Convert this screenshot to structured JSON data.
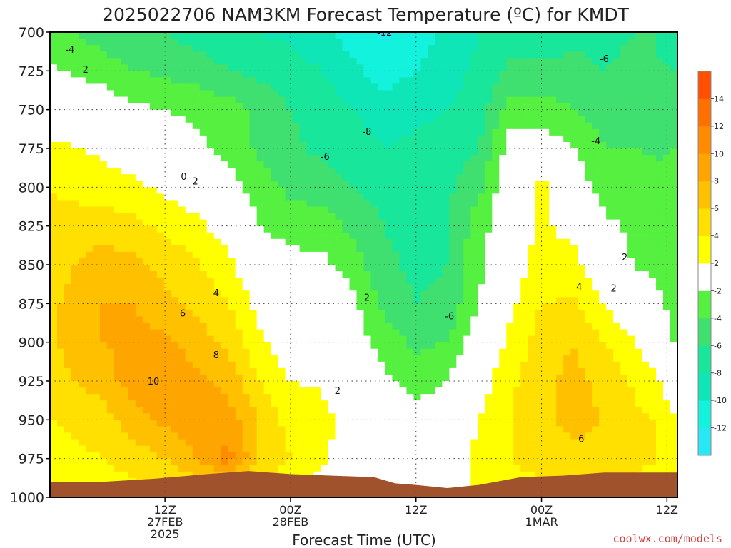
{
  "chart_data": {
    "type": "heatmap",
    "title": "2025022706 NAM3KM Forecast Temperature (ºC) for KMDT",
    "xlabel": "Forecast Time (UTC)",
    "ylabel": "",
    "y_axis": {
      "reversed": true,
      "ticks": [
        "700",
        "725",
        "750",
        "775",
        "800",
        "825",
        "850",
        "875",
        "900",
        "925",
        "950",
        "975",
        "1000"
      ],
      "range": [
        700,
        1000
      ]
    },
    "x_axis": {
      "range_hours": [
        -5,
        55
      ],
      "ticks": [
        {
          "hour": 6,
          "lines": [
            "12Z",
            "27FEB",
            "2025"
          ]
        },
        {
          "hour": 18,
          "lines": [
            "00Z",
            "28FEB"
          ]
        },
        {
          "hour": 30,
          "lines": [
            "12Z"
          ]
        },
        {
          "hour": 42,
          "lines": [
            "00Z",
            "1MAR"
          ]
        },
        {
          "hour": 54,
          "lines": [
            "12Z"
          ]
        }
      ]
    },
    "grid": true,
    "colorbar": {
      "position": "right",
      "tick_labels": [
        "14",
        "12",
        "10",
        "8",
        "6",
        "4",
        "2",
        "-2",
        "-4",
        "-6",
        "-8",
        "-10",
        "-12"
      ],
      "bounds": [
        -14,
        -12,
        -10,
        -8,
        -6,
        -4,
        -2,
        2,
        4,
        6,
        8,
        10,
        12,
        14,
        16
      ],
      "colors": [
        "#29e8f6",
        "#13f2dc",
        "#0fe6b8",
        "#18e69a",
        "#3fe070",
        "#55f040",
        "#ffffff",
        "#ffff00",
        "#ffe000",
        "#ffc000",
        "#ffa500",
        "#ff8c00",
        "#ff7000",
        "#ff5000"
      ]
    },
    "ground_color": "#a0522d",
    "surface_pressure": [
      [
        -5,
        990
      ],
      [
        0,
        990
      ],
      [
        5,
        988
      ],
      [
        10,
        985
      ],
      [
        14,
        983
      ],
      [
        18,
        985
      ],
      [
        22,
        986
      ],
      [
        26,
        987
      ],
      [
        28,
        991
      ],
      [
        30,
        992
      ],
      [
        33,
        994
      ],
      [
        36,
        992
      ],
      [
        40,
        987
      ],
      [
        44,
        986
      ],
      [
        48,
        984
      ],
      [
        52,
        984
      ],
      [
        55,
        984
      ]
    ],
    "columns": [
      {
        "hour": -5,
        "p": [
          700,
          725,
          750,
          775,
          800,
          825,
          850,
          875,
          900,
          925,
          950,
          975,
          990
        ],
        "t": [
          -3,
          -1.6,
          -0.6,
          2.7,
          4,
          4.5,
          5,
          5.5,
          5.6,
          5.2,
          4,
          3,
          2
        ]
      },
      {
        "hour": 0,
        "p": [
          700,
          725,
          750,
          775,
          800,
          825,
          850,
          875,
          900,
          925,
          950,
          975,
          990
        ],
        "t": [
          -5,
          -3,
          -0.5,
          1.5,
          3,
          5,
          7,
          8,
          8,
          7,
          5,
          4,
          3
        ]
      },
      {
        "hour": 3,
        "p": [
          700,
          725,
          750,
          775,
          800,
          825,
          850,
          875,
          900,
          925,
          950,
          975,
          989
        ],
        "t": [
          -6,
          -4,
          -1.5,
          0.5,
          2.5,
          4.5,
          6.5,
          8,
          8.5,
          9,
          7,
          5,
          4
        ]
      },
      {
        "hour": 6,
        "p": [
          700,
          725,
          750,
          775,
          800,
          825,
          850,
          875,
          900,
          925,
          950,
          975,
          988
        ],
        "t": [
          -6,
          -4.5,
          -2,
          -0.4,
          1.5,
          3.5,
          5.5,
          6.5,
          8.5,
          10,
          8.5,
          6,
          4
        ]
      },
      {
        "hour": 9,
        "p": [
          700,
          725,
          750,
          775,
          800,
          825,
          850,
          875,
          900,
          925,
          950,
          975,
          986
        ],
        "t": [
          -7,
          -5,
          -2.5,
          -1.5,
          0.5,
          2.5,
          4.2,
          5.5,
          7,
          8.5,
          9,
          8,
          6
        ]
      },
      {
        "hour": 12,
        "p": [
          700,
          725,
          750,
          775,
          800,
          825,
          850,
          875,
          900,
          925,
          950,
          975,
          984
        ],
        "t": [
          -7,
          -6,
          -3,
          -2.5,
          -1,
          1,
          2.5,
          4,
          5.5,
          7.5,
          9,
          11,
          8
        ]
      },
      {
        "hour": 15,
        "p": [
          700,
          725,
          750,
          775,
          800,
          825,
          850,
          875,
          900,
          925,
          950,
          975,
          984
        ],
        "t": [
          -8,
          -6.5,
          -4.5,
          -4.5,
          -3,
          -2,
          0,
          1.2,
          2.5,
          4,
          6,
          6,
          5
        ]
      },
      {
        "hour": 18,
        "p": [
          700,
          725,
          750,
          775,
          800,
          825,
          850,
          875,
          900,
          925,
          950,
          975,
          985
        ],
        "t": [
          -8.5,
          -7,
          -6,
          -5.5,
          -4.5,
          -3,
          -1.2,
          0,
          0.5,
          2,
          3,
          4,
          3
        ]
      },
      {
        "hour": 21,
        "p": [
          700,
          725,
          750,
          775,
          800,
          825,
          850,
          875,
          900,
          925,
          950,
          975,
          986
        ],
        "t": [
          -9.5,
          -8,
          -7,
          -6.5,
          -5,
          -3,
          -1.5,
          0.4,
          1,
          1.8,
          2.5,
          2.2,
          1.8
        ]
      },
      {
        "hour": 24,
        "p": [
          700,
          725,
          750,
          775,
          800,
          825,
          850,
          875,
          900,
          925,
          950,
          975,
          987
        ],
        "t": [
          -11,
          -9.5,
          -8,
          -7,
          -6,
          -4.5,
          -3,
          -1.5,
          -1,
          0.5,
          1.5,
          1,
          0.6
        ]
      },
      {
        "hour": 27,
        "p": [
          700,
          725,
          750,
          775,
          800,
          825,
          850,
          875,
          900,
          925,
          950,
          975,
          990
        ],
        "t": [
          -12.5,
          -11,
          -9,
          -8,
          -7,
          -6,
          -5.5,
          -4.5,
          -3,
          -1.5,
          0,
          0.5,
          0.3
        ]
      },
      {
        "hour": 30,
        "p": [
          700,
          725,
          750,
          775,
          800,
          825,
          850,
          875,
          900,
          925,
          950,
          975,
          992
        ],
        "t": [
          -11,
          -10,
          -8.5,
          -7.5,
          -7.2,
          -7,
          -6.5,
          -6,
          -4.5,
          -3,
          -1,
          0,
          0
        ]
      },
      {
        "hour": 33,
        "p": [
          700,
          725,
          750,
          775,
          800,
          825,
          850,
          875,
          900,
          925,
          950,
          975,
          994
        ],
        "t": [
          -9.5,
          -9,
          -8,
          -7,
          -6.5,
          -6,
          -6,
          -5.5,
          -4,
          -2,
          0,
          0.7,
          0.8
        ]
      },
      {
        "hour": 36,
        "p": [
          700,
          725,
          750,
          775,
          800,
          825,
          850,
          875,
          900,
          925,
          950,
          975,
          992
        ],
        "t": [
          -8,
          -7.5,
          -7,
          -6,
          -4.5,
          -3,
          -2.5,
          -2,
          -0.5,
          1,
          2,
          2.5,
          2.5
        ]
      },
      {
        "hour": 39,
        "p": [
          700,
          725,
          750,
          775,
          800,
          825,
          850,
          875,
          900,
          925,
          950,
          975,
          988
        ],
        "t": [
          -7,
          -5.5,
          -3,
          -1,
          0,
          0,
          0.5,
          1.5,
          2.5,
          3.5,
          4,
          4,
          3.5
        ]
      },
      {
        "hour": 42,
        "p": [
          700,
          725,
          750,
          775,
          800,
          825,
          850,
          875,
          900,
          925,
          950,
          975,
          986
        ],
        "t": [
          -7,
          -5.5,
          -3.2,
          -0.6,
          2.8,
          2.5,
          3.2,
          4,
          5,
          5.5,
          5.5,
          5,
          4
        ]
      },
      {
        "hour": 45,
        "p": [
          700,
          725,
          750,
          775,
          800,
          825,
          850,
          875,
          900,
          925,
          950,
          975,
          986
        ],
        "t": [
          -6.5,
          -5.5,
          -4,
          -2,
          -0.5,
          1,
          3,
          4.2,
          6,
          6.5,
          6.5,
          5.5,
          4.5
        ]
      },
      {
        "hour": 48,
        "p": [
          700,
          725,
          750,
          775,
          800,
          825,
          850,
          875,
          900,
          925,
          950,
          975,
          984
        ],
        "t": [
          -6.5,
          -6,
          -5,
          -4,
          -3,
          -1.5,
          -0.5,
          2,
          4,
          5.5,
          6,
          5.5,
          4.5
        ]
      },
      {
        "hour": 51,
        "p": [
          700,
          725,
          750,
          775,
          800,
          825,
          850,
          875,
          900,
          925,
          950,
          975,
          984
        ],
        "t": [
          -6,
          -5.5,
          -4.5,
          -4,
          -3,
          -2.5,
          -2.2,
          -0.4,
          2,
          3.5,
          4.5,
          4.5,
          4
        ]
      },
      {
        "hour": 53,
        "p": [
          700,
          725,
          750,
          775,
          800,
          825,
          850,
          875,
          900,
          925,
          950,
          975,
          984
        ],
        "t": [
          -6,
          -5.8,
          -5,
          -4.2,
          -3.5,
          -2.8,
          -2.5,
          -1.5,
          0.3,
          2.5,
          4,
          4.2,
          3.5
        ]
      },
      {
        "hour": 55,
        "p": [
          700,
          725,
          750,
          775,
          800,
          825,
          850,
          875,
          900,
          925,
          950,
          975,
          984
        ],
        "t": [
          -8,
          -6,
          -5,
          -4,
          -3.5,
          -3,
          -3,
          -3,
          -2.5,
          -0.5,
          2,
          3,
          2.5
        ]
      }
    ],
    "contour_labels": [
      {
        "text": "-12",
        "hour": 27,
        "p": 700
      },
      {
        "text": "-4",
        "hour": -3.1,
        "p": 711
      },
      {
        "text": "2",
        "hour": -1.6,
        "p": 724
      },
      {
        "text": "-6",
        "hour": 48,
        "p": 717
      },
      {
        "text": "-8",
        "hour": 25.3,
        "p": 764
      },
      {
        "text": "-6",
        "hour": 21.3,
        "p": 780
      },
      {
        "text": "-4",
        "hour": 47.2,
        "p": 770
      },
      {
        "text": "0",
        "hour": 7.8,
        "p": 793
      },
      {
        "text": "2",
        "hour": 8.9,
        "p": 796
      },
      {
        "text": "-2",
        "hour": 49.8,
        "p": 845
      },
      {
        "text": "4",
        "hour": 10.9,
        "p": 868
      },
      {
        "text": "2",
        "hour": 25.3,
        "p": 871
      },
      {
        "text": "4",
        "hour": 45.6,
        "p": 864
      },
      {
        "text": "2",
        "hour": 48.9,
        "p": 865
      },
      {
        "text": "6",
        "hour": 7.7,
        "p": 881
      },
      {
        "text": "-6",
        "hour": 33.2,
        "p": 883
      },
      {
        "text": "8",
        "hour": 10.9,
        "p": 908
      },
      {
        "text": "10",
        "hour": 4.9,
        "p": 925
      },
      {
        "text": "2",
        "hour": 22.5,
        "p": 931
      },
      {
        "text": "6",
        "hour": 45.8,
        "p": 962
      }
    ]
  },
  "credit": "coolwx.com/models"
}
